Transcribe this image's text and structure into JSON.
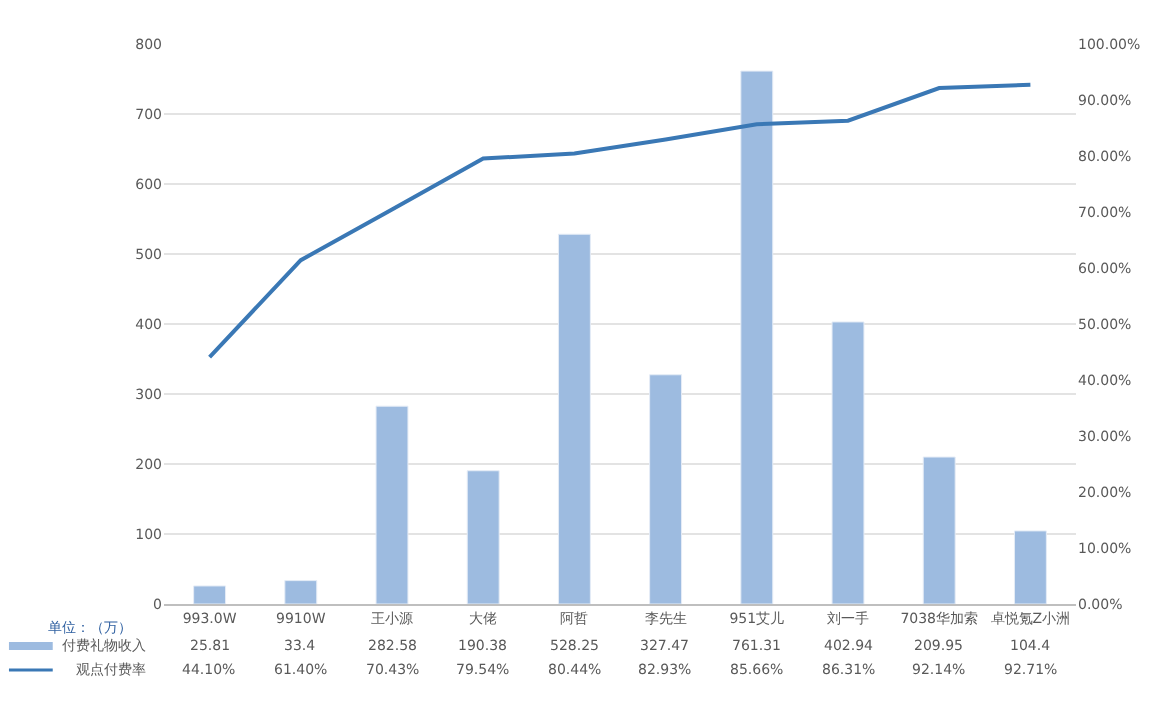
{
  "chart_data": {
    "type": "bar",
    "categories": [
      "993.0W",
      "9910W",
      "王小源",
      "大佬",
      "阿哲",
      "李先生",
      "951艾儿",
      "刘一手",
      "7038华加索",
      "卓悦氪Z小洲"
    ],
    "series": [
      {
        "name": "付费礼物收入",
        "color": "#9dbbe0",
        "values": [
          25.81,
          33.4,
          282.58,
          190.38,
          528.25,
          327.47,
          761.31,
          402.94,
          209.95,
          104.4
        ],
        "value_labels": [
          "25.81",
          "33.4",
          "282.58",
          "190.38",
          "528.25",
          "327.47",
          "761.31",
          "402.94",
          "209.95",
          "104.4"
        ]
      },
      {
        "name": "观点付费率",
        "type": "line",
        "axis": "y2",
        "color": "#3a78b5",
        "values": [
          44.1,
          61.4,
          70.43,
          79.54,
          80.44,
          82.93,
          85.66,
          86.31,
          92.14,
          92.71
        ],
        "value_labels": [
          "44.10%",
          "61.40%",
          "70.43%",
          "79.54%",
          "80.44%",
          "82.93%",
          "85.66%",
          "86.31%",
          "92.14%",
          "92.71%"
        ]
      }
    ],
    "annotations": [
      "单位：（万）"
    ],
    "ylim": [
      0,
      800
    ],
    "yticks": [
      0,
      100,
      200,
      300,
      400,
      500,
      600,
      700,
      800
    ],
    "y2lim": [
      0,
      100
    ],
    "y2ticks": [
      {
        "value": 0,
        "label": "0.00%"
      },
      {
        "value": 10,
        "label": "10.00%"
      },
      {
        "value": 20,
        "label": "20.00%"
      },
      {
        "value": 30,
        "label": "30.00%"
      },
      {
        "value": 40,
        "label": "40.00%"
      },
      {
        "value": 50,
        "label": "50.00%"
      },
      {
        "value": 60,
        "label": "60.00%"
      },
      {
        "value": 70,
        "label": "70.00%"
      },
      {
        "value": 80,
        "label": "80.00%"
      },
      {
        "value": 90,
        "label": "90.00%"
      },
      {
        "value": 100,
        "label": "100.00%"
      }
    ],
    "grid": "y",
    "legend": "bottom left",
    "marker": "none",
    "line_style": "solid"
  }
}
